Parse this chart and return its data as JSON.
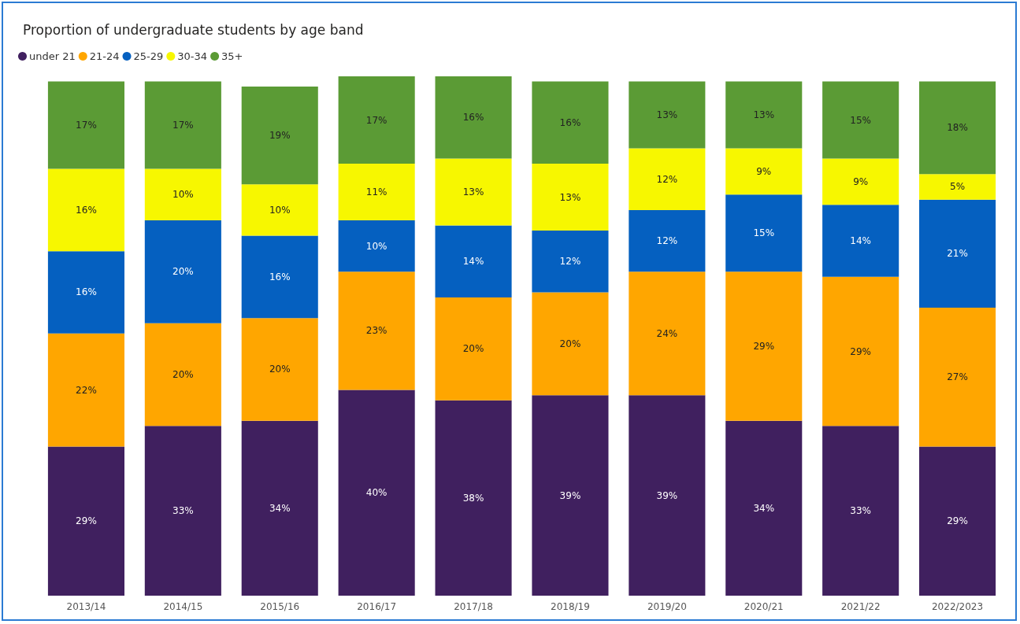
{
  "chart_data": {
    "type": "bar",
    "stacked": true,
    "title": "Proportion of undergraduate students by age band",
    "legend": "top left",
    "categories": [
      "2013/14",
      "2014/15",
      "2015/16",
      "2016/17",
      "2017/18",
      "2018/19",
      "2019/20",
      "2020/21",
      "2021/22",
      "2022/2023"
    ],
    "series": [
      {
        "name": "under 21",
        "color": "#40205f",
        "values": [
          29,
          33,
          34,
          40,
          38,
          39,
          39,
          34,
          33,
          29
        ],
        "value_labels": [
          "29%",
          "33%",
          "34%",
          "40%",
          "38%",
          "39%",
          "39%",
          "34%",
          "33%",
          "29%"
        ]
      },
      {
        "name": "21-24",
        "color": "#ffa600",
        "values": [
          22,
          20,
          20,
          23,
          20,
          20,
          24,
          29,
          29,
          27
        ],
        "value_labels": [
          "22%",
          "20%",
          "20%",
          "23%",
          "20%",
          "20%",
          "24%",
          "29%",
          "29%",
          "27%"
        ]
      },
      {
        "name": "25-29",
        "color": "#0560c0",
        "values": [
          16,
          20,
          16,
          10,
          14,
          12,
          12,
          15,
          14,
          21
        ],
        "value_labels": [
          "16%",
          "20%",
          "16%",
          "10%",
          "14%",
          "12%",
          "12%",
          "15%",
          "14%",
          "21%"
        ]
      },
      {
        "name": "30-34",
        "color": "#f7f700",
        "values": [
          16,
          10,
          10,
          11,
          13,
          13,
          12,
          9,
          9,
          5
        ],
        "value_labels": [
          "16%",
          "10%",
          "10%",
          "11%",
          "13%",
          "13%",
          "12%",
          "9%",
          "9%",
          "5%"
        ]
      },
      {
        "name": "35+",
        "color": "#5b9b35",
        "values": [
          17,
          17,
          19,
          17,
          16,
          16,
          13,
          13,
          15,
          18
        ],
        "value_labels": [
          "17%",
          "17%",
          "19%",
          "17%",
          "16%",
          "16%",
          "13%",
          "13%",
          "15%",
          "18%"
        ]
      }
    ]
  }
}
